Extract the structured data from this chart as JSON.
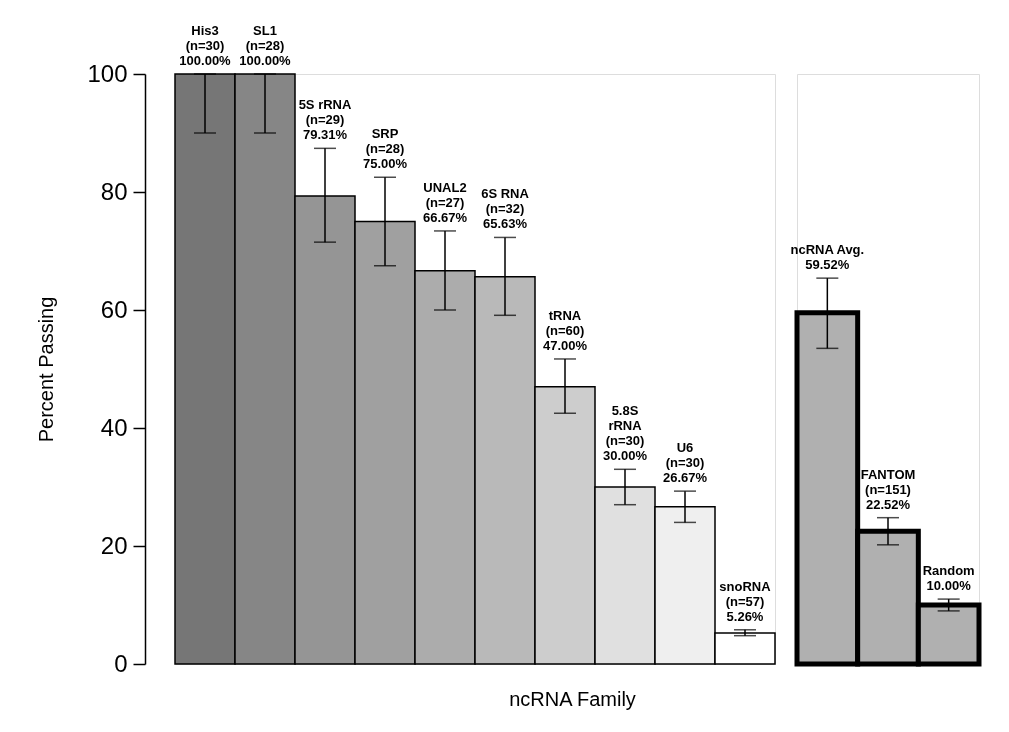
{
  "chart_data": [
    {
      "type": "bar",
      "ylabel": "Percent Passing",
      "xlabel": "ncRNA Family",
      "categories": [
        null,
        null,
        null,
        null,
        null,
        null,
        null,
        null,
        null,
        null
      ],
      "values": [
        100,
        100,
        79.31,
        75,
        66.67,
        65.63,
        47,
        30,
        26.67,
        5.26
      ],
      "value_labels": [
        "His3\n(n=30)\n100.00%",
        "SL1\n(n=28)\n100.00%",
        "5S rRNA\n(n=29)\n79.31%",
        "SRP\n(n=28)\n75.00%",
        "UNAL2\n(n=27)\n66.67%",
        "6S RNA\n(n=32)\n65.63%",
        "tRNA\n(n=60)\n47.00%",
        "5.8S\nrRNA\n(n=30)\n30.00%",
        "U6\n(n=30)\n26.67%",
        "snoRNA\n(n=57)\n5.26%"
      ],
      "colors": [
        "#767676",
        "#868686",
        "#959595",
        "#a0a0a0",
        "#acacac",
        "#b9b9b9",
        "#cdcdcd",
        "#e0e0e0",
        "#efefef",
        "#ffffff"
      ],
      "errors": [
        [
          90,
          100
        ],
        [
          90,
          100
        ],
        [
          71.5,
          87.4
        ],
        [
          67.5,
          82.5
        ],
        [
          60,
          73.4
        ],
        [
          59.1,
          72.3
        ],
        [
          42.5,
          51.7
        ],
        [
          27,
          33
        ],
        [
          24,
          29.3
        ],
        [
          4.8,
          5.8
        ]
      ],
      "ylim": [
        0,
        100
      ],
      "yticks": [
        0,
        20,
        40,
        60,
        80,
        100
      ],
      "grid": false
    },
    {
      "type": "bar",
      "categories": [
        null,
        null,
        null
      ],
      "values": [
        59.52,
        22.52,
        10
      ],
      "value_labels": [
        "ncRNA Avg.\n59.52%",
        "FANTOM\n(n=151)\n22.52%",
        "Random\n10.00%"
      ],
      "colors": [
        "#b0b0b0",
        "#b0b0b0",
        "#b0b0b0"
      ],
      "errors": [
        [
          53.5,
          65.4
        ],
        [
          20.2,
          24.8
        ],
        [
          9,
          11
        ]
      ],
      "ylim": [
        0,
        100
      ],
      "tick_labels": false,
      "grid": false
    }
  ]
}
